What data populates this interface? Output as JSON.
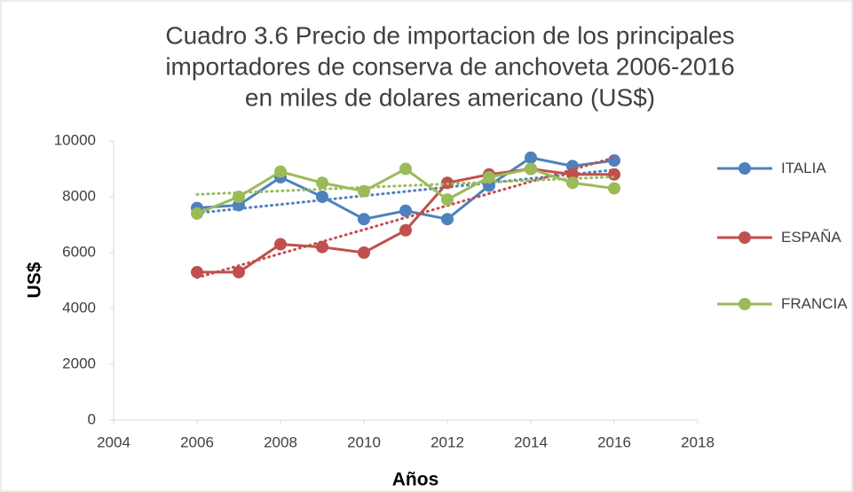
{
  "chart_data": {
    "type": "scatter-line",
    "title": [
      "Cuadro 3.6 Precio de importacion de los principales",
      "importadores de conserva de anchoveta 2006-2016",
      "en miles de dolares americano (US$)"
    ],
    "x_label": "Años",
    "y_label": "US$",
    "x": [
      2006,
      2007,
      2008,
      2009,
      2010,
      2011,
      2012,
      2013,
      2014,
      2015,
      2016
    ],
    "series": [
      {
        "name": "ITALIA",
        "color": "#4f81bd",
        "values": [
          7600,
          7700,
          8700,
          8000,
          7200,
          7500,
          7200,
          8400,
          9400,
          9100,
          9300
        ]
      },
      {
        "name": "ESPAÑA",
        "color": "#c0504d",
        "values": [
          5300,
          5300,
          6300,
          6200,
          6000,
          6800,
          8500,
          8800,
          9000,
          8800,
          8800
        ]
      },
      {
        "name": "FRANCIA",
        "color": "#9bbb59",
        "values": [
          7400,
          8000,
          8900,
          8500,
          8200,
          9000,
          7900,
          8700,
          9000,
          8500,
          8300
        ]
      }
    ],
    "xlim": [
      2004,
      2018
    ],
    "xticks": [
      2004,
      2006,
      2008,
      2010,
      2012,
      2014,
      2016,
      2018
    ],
    "ylim": [
      0,
      10000
    ],
    "yticks": [
      0,
      2000,
      4000,
      6000,
      8000,
      10000
    ],
    "trendline": true,
    "legend": "right"
  }
}
